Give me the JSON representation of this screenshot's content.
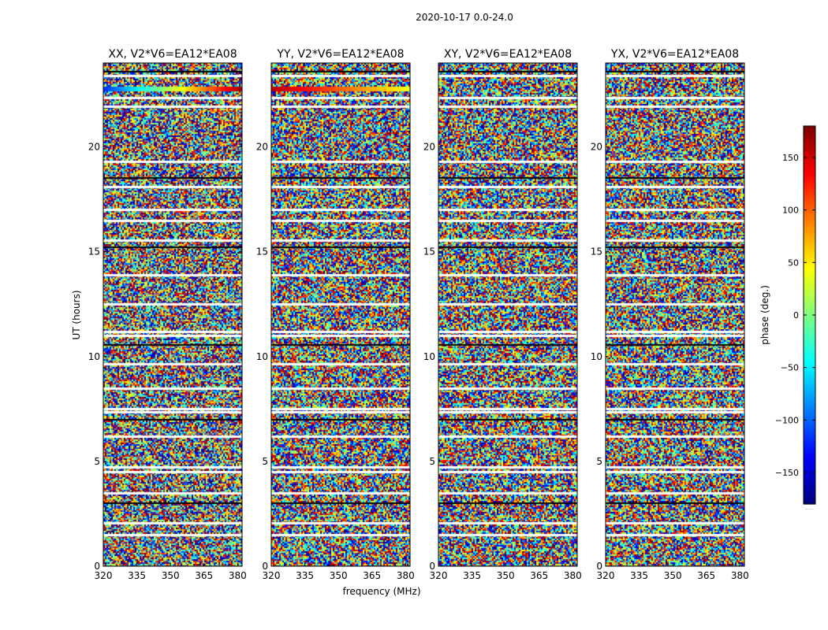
{
  "chart_data": {
    "type": "heatmap",
    "suptitle": "2020-10-17 0.0-24.0",
    "xlabel": "frequency (MHz)",
    "ylabel": "UT (hours)",
    "xlim": [
      320,
      382
    ],
    "ylim": [
      0,
      24
    ],
    "xticks": [
      320,
      335,
      350,
      365,
      380
    ],
    "yticks": [
      0,
      5,
      10,
      15,
      20
    ],
    "panels": [
      {
        "title": "XX, V2*V6=EA12*EA08",
        "seed": 11,
        "band": {
          "y": 22.75,
          "left": -120,
          "right": 170
        }
      },
      {
        "title": "YY, V2*V6=EA12*EA08",
        "seed": 23,
        "band": {
          "y": 22.75,
          "left": 160,
          "right": 40
        }
      },
      {
        "title": "XY, V2*V6=EA12*EA08",
        "seed": 37,
        "band": null
      },
      {
        "title": "YX, V2*V6=EA12*EA08",
        "seed": 53,
        "band": null
      }
    ],
    "flagged_hours": [
      1.5,
      2.05,
      3.0,
      3.5,
      4.5,
      4.75,
      6.2,
      7.0,
      7.35,
      7.5,
      8.5,
      9.65,
      10.55,
      11.0,
      11.2,
      12.5,
      13.9,
      15.2,
      15.55,
      16.5,
      17.0,
      18.1,
      18.5,
      19.3,
      21.95,
      22.35,
      23.4,
      23.6
    ],
    "colorbar": {
      "label": "phase (deg.)",
      "min": -180,
      "max": 180,
      "ticks": [
        -150,
        -100,
        -50,
        0,
        50,
        100,
        150
      ],
      "tick_labels": [
        "−150",
        "−100",
        "−50",
        "0",
        "50",
        "100",
        "150"
      ],
      "colormap": "jet",
      "footnote": "....."
    }
  }
}
